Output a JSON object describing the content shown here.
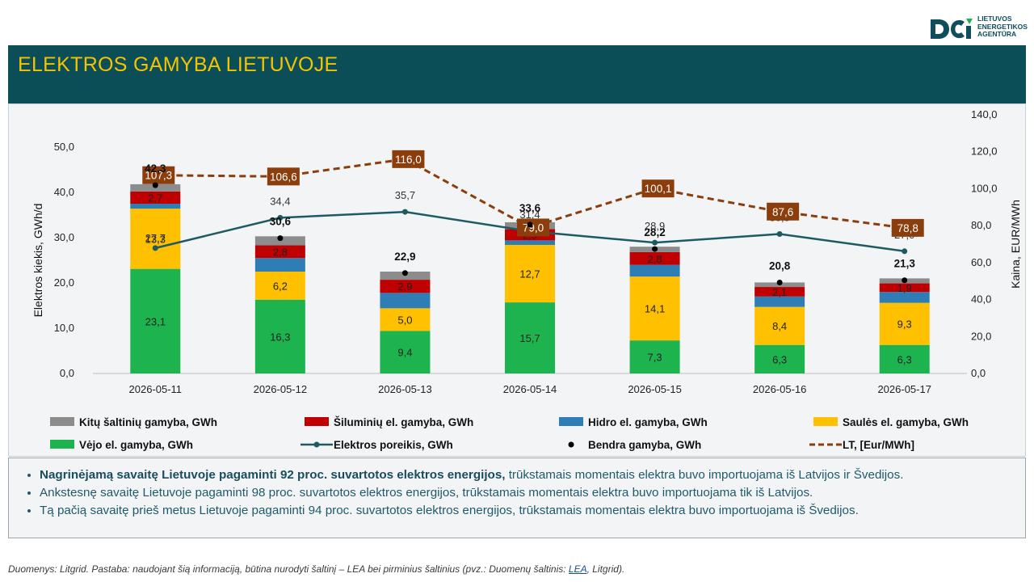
{
  "logo": {
    "lines": [
      "LIETUVOS",
      "ENERGETIKOS",
      "AGENTŪRA"
    ]
  },
  "header": {
    "title": "ELEKTROS GAMYBA LIETUVOJE"
  },
  "chart_data": {
    "type": "bar",
    "stacked": true,
    "categories": [
      "2026-05-11",
      "2026-05-12",
      "2026-05-13",
      "2026-05-14",
      "2026-05-15",
      "2026-05-16",
      "2026-05-17"
    ],
    "ylabel": "Elektros kiekis, GWh/d",
    "ylabel_right": "Kaina, EUR/MWh",
    "ylim": [
      0,
      50
    ],
    "ylim_right": [
      0,
      140
    ],
    "yticks": [
      "0,0",
      "10,0",
      "20,0",
      "30,0",
      "40,0",
      "50,0"
    ],
    "yticks_right": [
      "0,0",
      "20,0",
      "40,0",
      "60,0",
      "80,0",
      "100,0",
      "120,0",
      "140,0"
    ],
    "series": [
      {
        "name": "Vėjo el. gamyba, GWh",
        "color": "#1db34f",
        "values": [
          23.1,
          16.3,
          9.4,
          15.7,
          7.3,
          6.3,
          6.3
        ],
        "labels": [
          "23,1",
          "16,3",
          "9,4",
          "15,7",
          "7,3",
          "6,3",
          "6,3"
        ]
      },
      {
        "name": "Saulės el. gamyba, GWh",
        "color": "#ffc000",
        "values": [
          13.3,
          6.2,
          5.0,
          12.7,
          14.1,
          8.4,
          9.3
        ],
        "labels": [
          "13,3",
          "6,2",
          "5,0",
          "12,7",
          "14,1",
          "8,4",
          "9,3"
        ]
      },
      {
        "name": "Hidro el. gamyba, GWh",
        "color": "#2e7db5",
        "values": [
          1.1,
          3.0,
          3.4,
          1.0,
          2.6,
          2.3,
          2.4
        ],
        "labels": []
      },
      {
        "name": "Šiluminių el. gamyba, GWh",
        "color": "#c00000",
        "values": [
          2.7,
          2.8,
          2.9,
          2.5,
          2.8,
          2.1,
          1.9
        ],
        "labels": [
          "2,7",
          "2,8",
          "2,9",
          "2,5",
          "2,8",
          "2,1",
          "1,9"
        ]
      },
      {
        "name": "Kitų šaltinių gamyba,  GWh",
        "color": "#8c8c8c",
        "values": [
          1.6,
          2.0,
          1.8,
          1.5,
          1.2,
          1.0,
          1.1
        ],
        "labels": []
      }
    ],
    "total": {
      "name": "Bendra gamyba, GWh",
      "values": [
        42.3,
        30.6,
        22.9,
        33.6,
        28.2,
        20.8,
        21.3
      ],
      "labels": [
        "42,3",
        "30,6",
        "22,9",
        "33,6",
        "28,2",
        "20,8",
        "21,3"
      ]
    },
    "demand": {
      "name": "Elektros poreikis, GWh",
      "color": "#1f5a63",
      "values": [
        27.7,
        34.4,
        35.7,
        31.4,
        28.9,
        30.8,
        27.0
      ],
      "labels": [
        "27,7",
        "34,4",
        "35,7",
        "31,4",
        "28,9",
        "30,8",
        "27,0"
      ]
    },
    "price": {
      "name": "LT, [Eur/MWh]",
      "color": "#8b3d0b",
      "values": [
        107.3,
        106.6,
        116.0,
        79.0,
        100.1,
        87.6,
        78.8
      ],
      "labels": [
        "107,3",
        "106,6",
        "116,0",
        "79,0",
        "100,1",
        "87,6",
        "78,8"
      ]
    },
    "legend_order": [
      4,
      3,
      2,
      1,
      0,
      "demand",
      "total",
      "price"
    ],
    "legend_position": "bottom",
    "grid": false
  },
  "notes": {
    "items": [
      {
        "bold": "Nagrinėjamą savaitę Lietuvoje pagaminti 92 proc. suvartotos elektros energijos,",
        "text": " trūkstamais momentais elektra buvo importuojama iš Latvijos ir Švedijos."
      },
      {
        "bold": "",
        "text": "Ankstesnę savaitę Lietuvoje pagaminti 98 proc. suvartotos elektros energijos, trūkstamais momentais elektra buvo importuojama tik iš Latvijos."
      },
      {
        "bold": "",
        "text": "Tą pačią savaitę prieš metus Lietuvoje pagaminti 94 proc. suvartotos elektros energijos, trūkstamais momentais elektra buvo importuojama iš Švedijos."
      }
    ]
  },
  "footer": {
    "text_before": "Duomenys: Litgrid. Pastaba: naudojant šią informaciją, būtina nurodyti šaltinį – LEA bei pirminius šaltinius (pvz.: Duomenų šaltinis: ",
    "link": "LEA",
    "text_after": ", Litgrid)."
  }
}
